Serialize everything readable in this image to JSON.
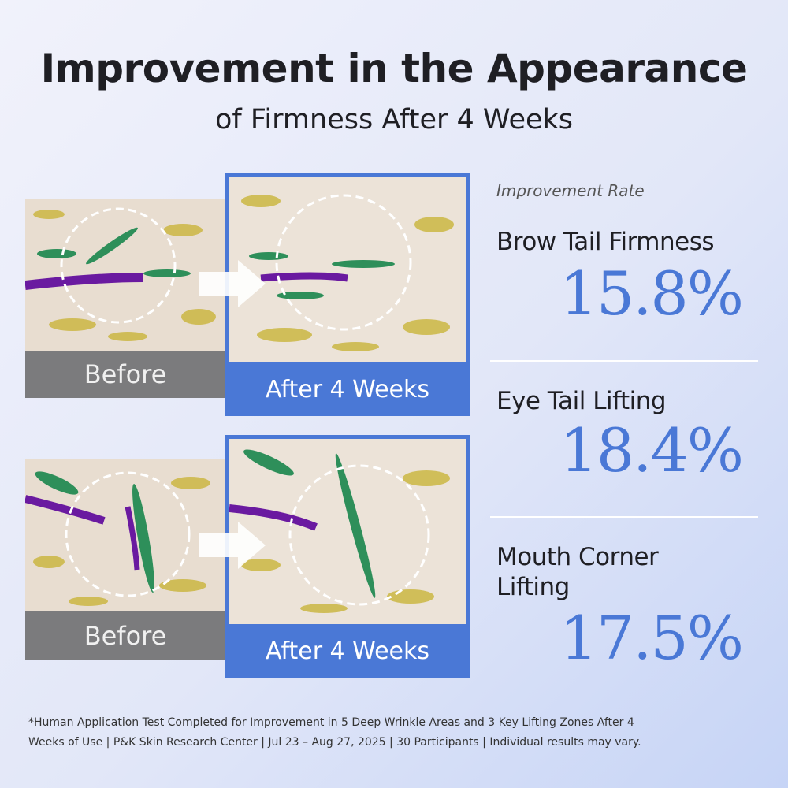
{
  "header": {
    "title": "Improvement in the Appearance",
    "subtitle": "of Firmness After 4 Weeks"
  },
  "comparisons": [
    {
      "before_label": "Before",
      "after_label": "After 4 Weeks"
    },
    {
      "before_label": "Before",
      "after_label": "After 4 Weeks"
    }
  ],
  "results": {
    "label": "Improvement Rate",
    "items": [
      {
        "name": "Brow Tail Firmness",
        "value": "15.8%"
      },
      {
        "name": "Eye Tail Lifting",
        "value": "18.4%"
      },
      {
        "name": "Mouth Corner Lifting",
        "value": "17.5%"
      }
    ]
  },
  "footnote": "*Human Application Test Completed for Improvement in 5 Deep Wrinkle Areas and 3 Key Lifting Zones After 4 Weeks of Use | P&K Skin Research Center | Jul 23 – Aug 27, 2025 | 30 Participants | Individual results may vary."
}
